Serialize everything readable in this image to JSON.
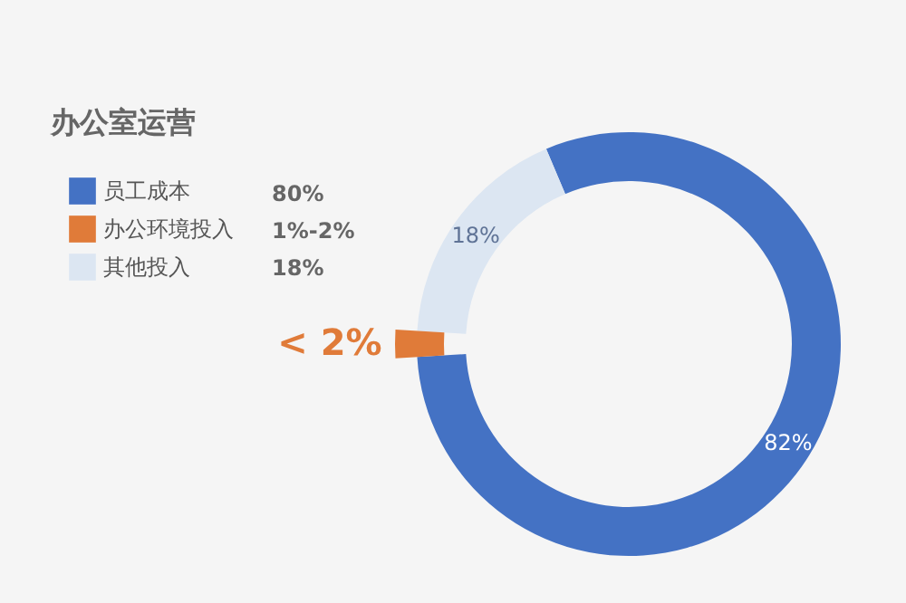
{
  "chart_data": {
    "type": "donut",
    "title": "办公室运营",
    "categories": [
      "员工成本",
      "办公环境投入",
      "其他投入"
    ],
    "values": [
      82,
      2,
      18
    ],
    "colors": [
      "#4472c4",
      "#e07b39",
      "#dce6f2"
    ],
    "value_labels": [
      "82%",
      "< 2%",
      "18%"
    ],
    "annotations": [
      "80%",
      "1%-2%",
      "18%"
    ],
    "legend": "top left"
  }
}
